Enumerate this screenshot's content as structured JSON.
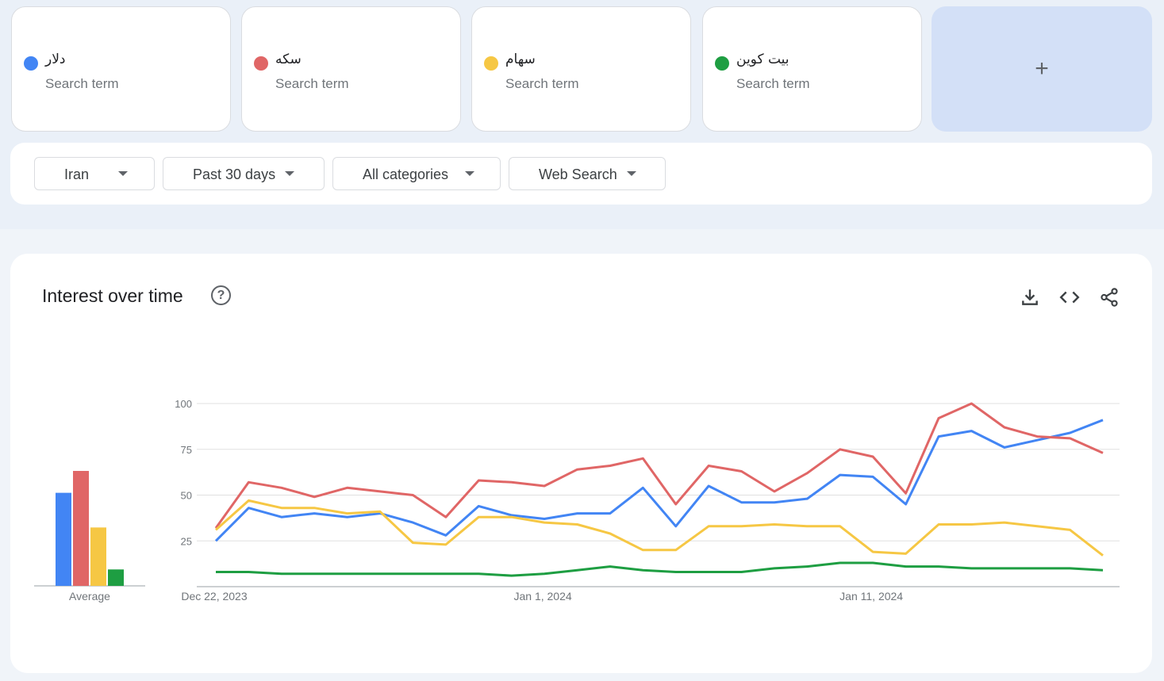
{
  "search_terms": [
    {
      "name": "دلار",
      "sub": "Search term",
      "color": "#4285f4"
    },
    {
      "name": "سکه",
      "sub": "Search term",
      "color": "#e06666"
    },
    {
      "name": "سهام",
      "sub": "Search term",
      "color": "#f6c744"
    },
    {
      "name": "بیت کوین",
      "sub": "Search term",
      "color": "#1e9e42"
    }
  ],
  "add_button": {
    "icon": "plus-icon",
    "label": "+"
  },
  "filters": {
    "region": "Iran",
    "time_range": "Past 30 days",
    "category": "All categories",
    "property": "Web Search"
  },
  "toolbar_icons": [
    "download-icon",
    "embed-code-icon",
    "share-icon"
  ],
  "chart_data": {
    "type": "line",
    "title": "Interest over time",
    "average_label": "Average",
    "ylim": [
      0,
      100
    ],
    "y_ticks": [
      25,
      50,
      75,
      100
    ],
    "x_tick_labels": [
      {
        "index": 0,
        "label": "Dec 22, 2023"
      },
      {
        "index": 10,
        "label": "Jan 1, 2024"
      },
      {
        "index": 20,
        "label": "Jan 11, 2024"
      }
    ],
    "x_start": "2023-12-22",
    "x_end": "2024-01-20",
    "grid": true,
    "series": [
      {
        "name": "دلار",
        "color": "#4285f4",
        "average": 51,
        "values": [
          25,
          43,
          38,
          40,
          38,
          40,
          35,
          28,
          44,
          39,
          37,
          40,
          40,
          54,
          33,
          55,
          46,
          46,
          48,
          61,
          60,
          45,
          82,
          85,
          76,
          80,
          84,
          91
        ]
      },
      {
        "name": "سکه",
        "color": "#e06666",
        "average": 63,
        "values": [
          32,
          57,
          54,
          49,
          54,
          52,
          50,
          38,
          58,
          57,
          55,
          64,
          66,
          70,
          45,
          66,
          63,
          52,
          62,
          75,
          71,
          51,
          92,
          100,
          87,
          82,
          81,
          73
        ]
      },
      {
        "name": "سهام",
        "color": "#f6c744",
        "average": 32,
        "values": [
          31,
          47,
          43,
          43,
          40,
          41,
          24,
          23,
          38,
          38,
          35,
          34,
          29,
          20,
          20,
          33,
          33,
          34,
          33,
          33,
          19,
          18,
          34,
          34,
          35,
          33,
          31,
          17
        ]
      },
      {
        "name": "بیت کوین",
        "color": "#1e9e42",
        "average": 9,
        "values": [
          8,
          8,
          7,
          7,
          7,
          7,
          7,
          7,
          7,
          6,
          7,
          9,
          11,
          9,
          8,
          8,
          8,
          10,
          11,
          13,
          13,
          11,
          11,
          10,
          10,
          10,
          10,
          9
        ]
      }
    ]
  }
}
